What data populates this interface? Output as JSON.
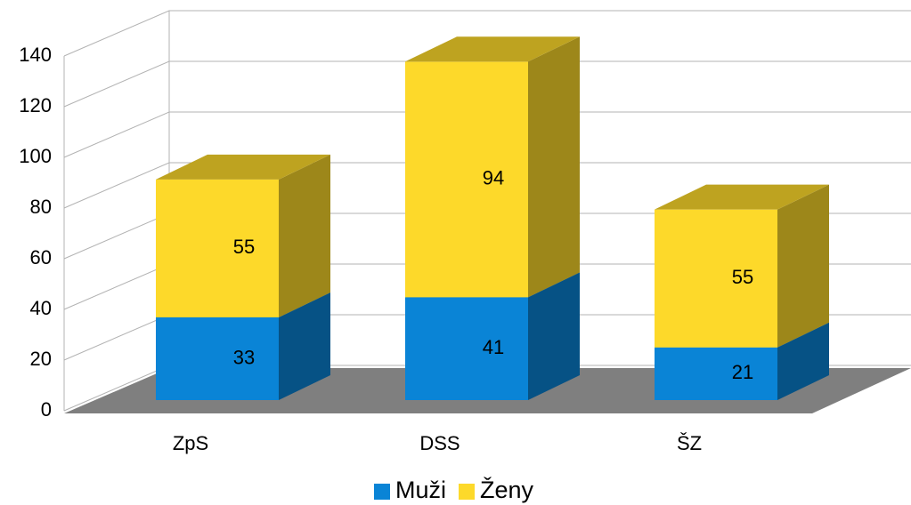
{
  "chart_data": {
    "type": "bar3d_stacked",
    "categories": [
      "ZpS",
      "DSS",
      "ŠZ"
    ],
    "series": [
      {
        "name": "Muži",
        "color": "#0a84d6",
        "values": [
          33,
          41,
          21
        ]
      },
      {
        "name": "Ženy",
        "color": "#fdd92a",
        "values": [
          55,
          94,
          55
        ]
      }
    ],
    "ylim": [
      0,
      140
    ],
    "yticks": [
      0,
      20,
      40,
      60,
      80,
      100,
      120,
      140
    ],
    "grid": true,
    "legend": "bottom"
  }
}
